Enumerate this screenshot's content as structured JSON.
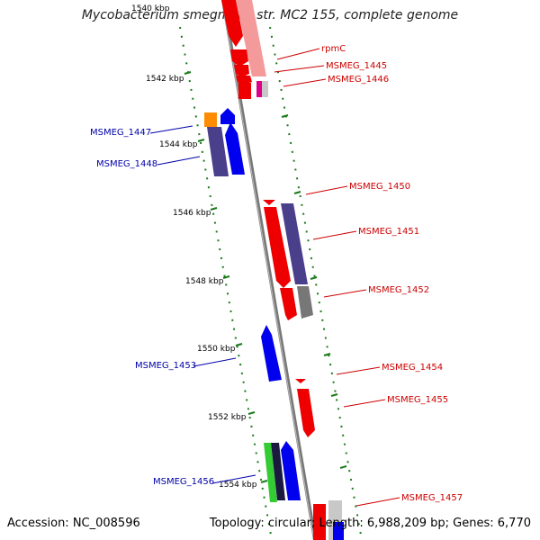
{
  "title": "Mycobacterium smegmatis str. MC2 155, complete genome",
  "accession_label": "Accession: NC_008596",
  "summary_label": "Topology: circular; Length: 6,988,209 bp; Genes: 6,770",
  "kbp_ticks": [
    "1540 kbp",
    "1542 kbp",
    "1544 kbp",
    "1546 kbp",
    "1548 kbp",
    "1550 kbp",
    "1552 kbp",
    "1554 kbp"
  ],
  "genes_right": [
    "rpmC",
    "MSMEG_1445",
    "MSMEG_1446",
    "MSMEG_1450",
    "MSMEG_1451",
    "MSMEG_1452",
    "MSMEG_1454",
    "MSMEG_1455",
    "MSMEG_1457"
  ],
  "genes_left": [
    "MSMEG_1447",
    "MSMEG_1448",
    "MSMEG_1453",
    "MSMEG_1456"
  ],
  "colors": {
    "forward": "#ee0000",
    "reverse": "#0000ee",
    "purple": "#4a3f8a",
    "orange": "#ff8c00",
    "green": "#33cc33",
    "gray": "#777777",
    "tick": "#1a7a1a",
    "label_red": "#cc0000",
    "label_blue": "#0000aa"
  }
}
